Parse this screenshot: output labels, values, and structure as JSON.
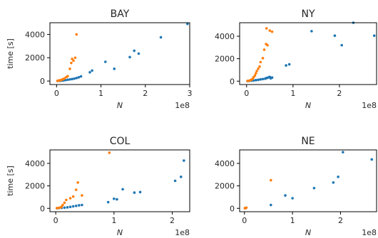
{
  "chart_data": [
    {
      "type": "scatter",
      "title": "BAY",
      "xlabel": "N",
      "ylabel": "time [s]",
      "x_offset_label": "1e8",
      "xlim": [
        -0.15,
        3.0
      ],
      "ylim": [
        -300,
        5000
      ],
      "xticks": [
        0,
        1,
        2,
        3
      ],
      "yticks": [
        0,
        2000,
        4000
      ],
      "series": [
        {
          "color": "#1f77b4",
          "points": [
            [
              0.02,
              10
            ],
            [
              0.05,
              20
            ],
            [
              0.08,
              30
            ],
            [
              0.1,
              40
            ],
            [
              0.13,
              50
            ],
            [
              0.16,
              60
            ],
            [
              0.2,
              80
            ],
            [
              0.25,
              110
            ],
            [
              0.3,
              140
            ],
            [
              0.35,
              170
            ],
            [
              0.4,
              210
            ],
            [
              0.45,
              260
            ],
            [
              0.5,
              320
            ],
            [
              0.55,
              400
            ],
            [
              0.75,
              750
            ],
            [
              0.8,
              900
            ],
            [
              1.1,
              1650
            ],
            [
              1.3,
              1050
            ],
            [
              1.65,
              2050
            ],
            [
              1.75,
              2600
            ],
            [
              1.85,
              2350
            ],
            [
              2.35,
              3750
            ],
            [
              2.95,
              4900
            ]
          ]
        },
        {
          "color": "#ff7f0e",
          "points": [
            [
              0.02,
              20
            ],
            [
              0.04,
              30
            ],
            [
              0.05,
              40
            ],
            [
              0.07,
              60
            ],
            [
              0.1,
              80
            ],
            [
              0.12,
              120
            ],
            [
              0.15,
              160
            ],
            [
              0.18,
              230
            ],
            [
              0.22,
              340
            ],
            [
              0.25,
              420
            ],
            [
              0.3,
              1050
            ],
            [
              0.33,
              1550
            ],
            [
              0.35,
              1900
            ],
            [
              0.38,
              1750
            ],
            [
              0.42,
              2000
            ],
            [
              0.45,
              4000
            ]
          ]
        }
      ]
    },
    {
      "type": "scatter",
      "title": "NY",
      "xlabel": "N",
      "ylabel": "",
      "x_offset_label": "1e8",
      "xlim": [
        -0.15,
        2.8
      ],
      "ylim": [
        -300,
        5200
      ],
      "xticks": [
        0,
        1,
        2
      ],
      "yticks": [
        0,
        2000,
        4000
      ],
      "series": [
        {
          "color": "#1f77b4",
          "points": [
            [
              0.02,
              10
            ],
            [
              0.05,
              20
            ],
            [
              0.1,
              40
            ],
            [
              0.15,
              60
            ],
            [
              0.2,
              90
            ],
            [
              0.25,
              120
            ],
            [
              0.3,
              160
            ],
            [
              0.35,
              190
            ],
            [
              0.4,
              220
            ],
            [
              0.42,
              270
            ],
            [
              0.45,
              300
            ],
            [
              0.48,
              350
            ],
            [
              0.5,
              380
            ],
            [
              0.52,
              250
            ],
            [
              0.55,
              320
            ],
            [
              0.85,
              1400
            ],
            [
              0.92,
              1500
            ],
            [
              1.4,
              4450
            ],
            [
              1.9,
              4050
            ],
            [
              2.05,
              3200
            ],
            [
              2.3,
              5200
            ],
            [
              2.75,
              4050
            ]
          ]
        },
        {
          "color": "#ff7f0e",
          "points": [
            [
              0.02,
              20
            ],
            [
              0.05,
              40
            ],
            [
              0.08,
              80
            ],
            [
              0.1,
              120
            ],
            [
              0.13,
              200
            ],
            [
              0.15,
              350
            ],
            [
              0.18,
              500
            ],
            [
              0.2,
              700
            ],
            [
              0.22,
              900
            ],
            [
              0.25,
              1100
            ],
            [
              0.28,
              1300
            ],
            [
              0.3,
              1700
            ],
            [
              0.35,
              2050
            ],
            [
              0.38,
              2800
            ],
            [
              0.42,
              3300
            ],
            [
              0.45,
              3200
            ],
            [
              0.5,
              4500
            ],
            [
              0.43,
              4700
            ],
            [
              0.55,
              4400
            ]
          ]
        }
      ]
    },
    {
      "type": "scatter",
      "title": "COL",
      "xlabel": "N",
      "ylabel": "time [s]",
      "x_offset_label": "1e8",
      "xlim": [
        -0.1,
        2.3
      ],
      "ylim": [
        -300,
        5200
      ],
      "xticks": [
        0,
        1,
        2
      ],
      "yticks": [
        0,
        2000,
        4000
      ],
      "series": [
        {
          "color": "#1f77b4",
          "points": [
            [
              0.02,
              10
            ],
            [
              0.05,
              20
            ],
            [
              0.1,
              40
            ],
            [
              0.15,
              60
            ],
            [
              0.2,
              90
            ],
            [
              0.25,
              130
            ],
            [
              0.3,
              180
            ],
            [
              0.35,
              220
            ],
            [
              0.4,
              270
            ],
            [
              0.45,
              300
            ],
            [
              0.9,
              550
            ],
            [
              1.0,
              850
            ],
            [
              1.05,
              800
            ],
            [
              1.15,
              1700
            ],
            [
              1.35,
              1400
            ],
            [
              1.45,
              1450
            ],
            [
              2.05,
              2450
            ],
            [
              2.15,
              2800
            ],
            [
              2.2,
              4250
            ]
          ]
        },
        {
          "color": "#ff7f0e",
          "points": [
            [
              0.02,
              20
            ],
            [
              0.05,
              40
            ],
            [
              0.08,
              80
            ],
            [
              0.1,
              150
            ],
            [
              0.12,
              300
            ],
            [
              0.15,
              500
            ],
            [
              0.18,
              750
            ],
            [
              0.25,
              900
            ],
            [
              0.3,
              1050
            ],
            [
              0.35,
              1650
            ],
            [
              0.38,
              2300
            ],
            [
              0.45,
              1150
            ],
            [
              0.92,
              4950
            ]
          ]
        }
      ]
    },
    {
      "type": "scatter",
      "title": "NE",
      "xlabel": "N",
      "ylabel": "",
      "x_offset_label": "1e8",
      "xlim": [
        -0.1,
        2.75
      ],
      "ylim": [
        -300,
        5200
      ],
      "xticks": [
        0,
        1,
        2
      ],
      "yticks": [
        0,
        2000,
        4000
      ],
      "series": [
        {
          "color": "#1f77b4",
          "points": [
            [
              0.01,
              10
            ],
            [
              0.02,
              20
            ],
            [
              0.03,
              30
            ],
            [
              0.55,
              300
            ],
            [
              0.85,
              1150
            ],
            [
              1.0,
              900
            ],
            [
              1.45,
              1800
            ],
            [
              1.85,
              2300
            ],
            [
              1.95,
              2800
            ],
            [
              2.05,
              5000
            ],
            [
              2.65,
              4350
            ]
          ]
        },
        {
          "color": "#ff7f0e",
          "points": [
            [
              0.01,
              10
            ],
            [
              0.02,
              25
            ],
            [
              0.03,
              40
            ],
            [
              0.04,
              60
            ],
            [
              0.55,
              2500
            ]
          ]
        }
      ]
    }
  ]
}
